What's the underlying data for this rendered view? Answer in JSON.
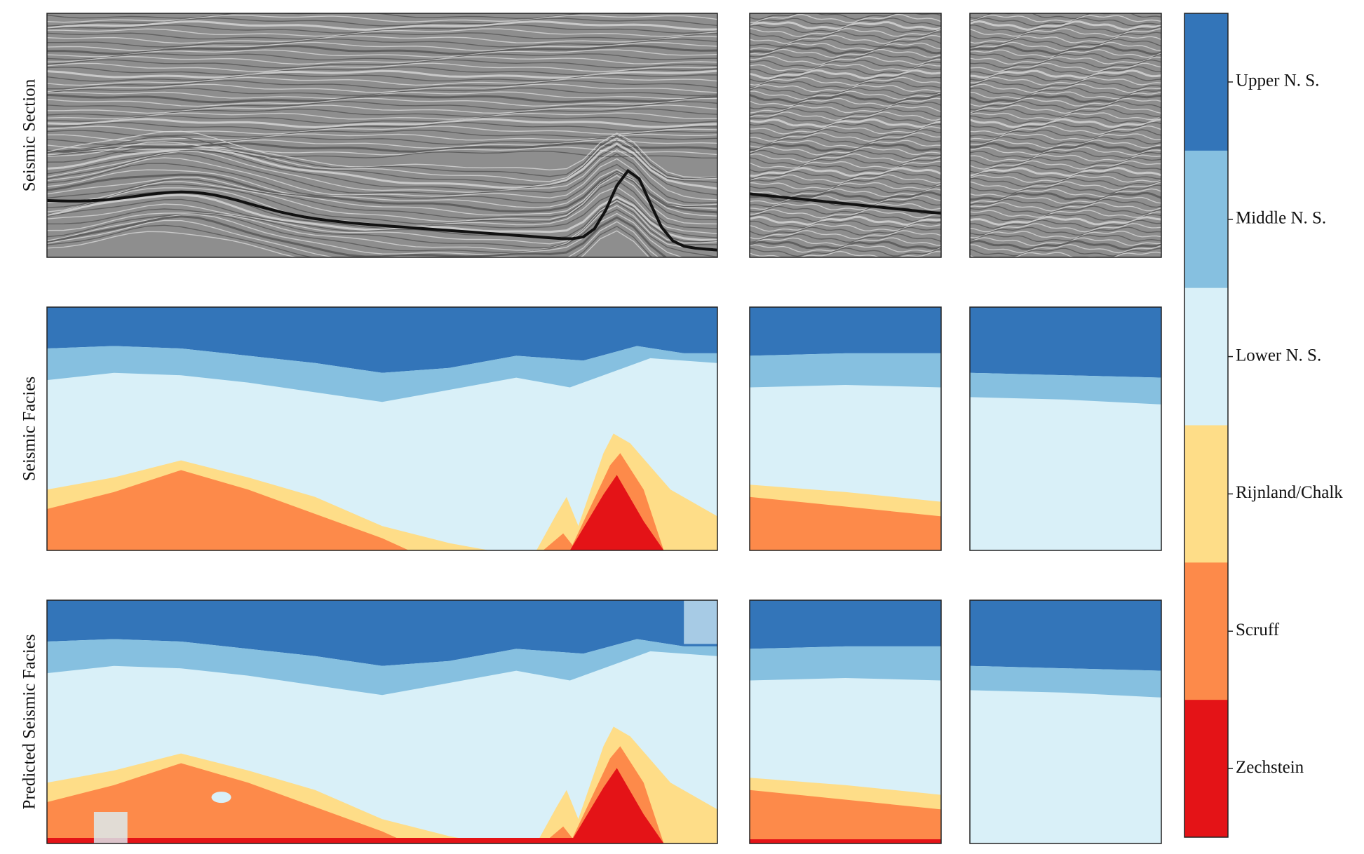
{
  "rows": [
    {
      "label": "Seismic Section"
    },
    {
      "label": "Seismic Facies"
    },
    {
      "label": "Predicted Seismic Facies"
    }
  ],
  "legend": {
    "classes": [
      {
        "name": "Upper N. S.",
        "color": "#3375b9"
      },
      {
        "name": "Middle N. S.",
        "color": "#86c0e0"
      },
      {
        "name": "Lower N. S.",
        "color": "#d9f0f8"
      },
      {
        "name": "Rijnland/Chalk",
        "color": "#fedd88"
      },
      {
        "name": "Scruff",
        "color": "#fd8a4a"
      },
      {
        "name": "Zechstein",
        "color": "#e41317"
      }
    ]
  }
}
